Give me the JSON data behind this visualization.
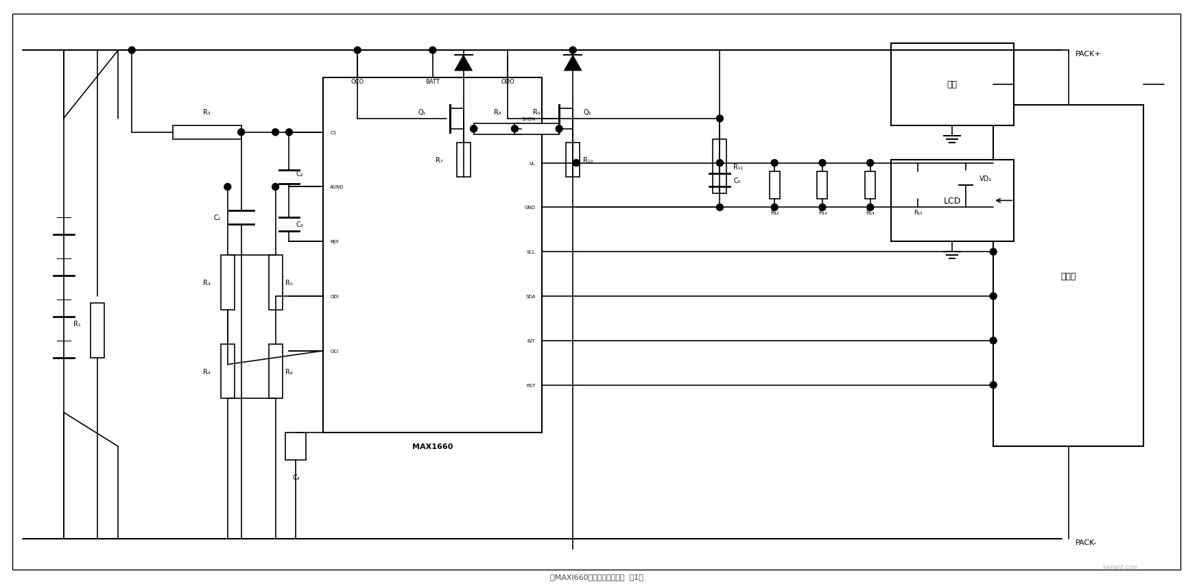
{
  "title": "由MAXl660构成的充放电系统  第1张",
  "bg_color": "#ffffff",
  "line_color": "#000000",
  "fig_width": 17.49,
  "fig_height": 8.53,
  "watermark": "jiaelant·com",
  "pack_plus_label": "PACK+",
  "pack_minus_label": "PACK-",
  "max1660_label": "MAX1660",
  "max1660_pins_left": [
    "CS",
    "AGND",
    "REF",
    "ODI",
    "OCI"
  ],
  "max1660_pins_top": [
    "OCO",
    "BATT",
    "ODO"
  ],
  "max1660_pins_right": [
    "SHDN",
    "VL",
    "GND",
    "SCL",
    "SDA",
    "INT",
    "RST"
  ],
  "serial_port_label": "串口",
  "lcd_label": "LCD",
  "mcu_label": "微控器",
  "components": {
    "R1": "R₁",
    "R2": "R₂",
    "R3": "R₃",
    "R4": "R₄",
    "R5": "R₅",
    "R6": "R₆",
    "R7": "R₇",
    "R8": "R₈",
    "R9": "R₉",
    "R10": "R₁₀",
    "R11": "R₁₁",
    "R12": "R₁₂",
    "R13": "R₁₃",
    "R14": "R₁₄",
    "R15": "R₁₅",
    "C1": "C₁",
    "C2": "C₂",
    "C3": "C₃",
    "C4": "C₄",
    "C5": "C₅",
    "Q1": "Q₁",
    "Q2": "Q₂",
    "VD1": "VD₁"
  }
}
